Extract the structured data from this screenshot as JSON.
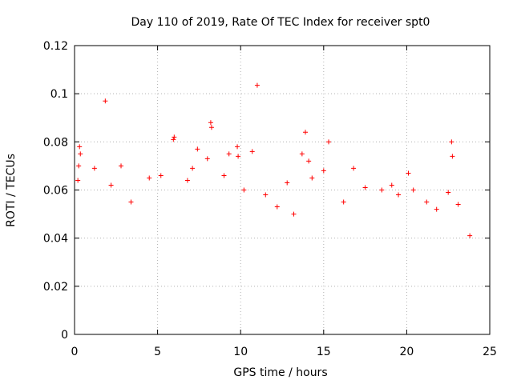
{
  "chart_data": {
    "type": "scatter",
    "title": "Day 110 of 2019, Rate Of TEC Index for receiver spt0",
    "xlabel": "GPS time / hours",
    "ylabel": "ROTI / TECUs",
    "xlim": [
      0,
      25
    ],
    "ylim": [
      0,
      0.12
    ],
    "xticks": [
      0,
      5,
      10,
      15,
      20,
      25
    ],
    "xtick_labels": [
      "0",
      "5",
      "10",
      "15",
      "20",
      "25"
    ],
    "yticks": [
      0,
      0.02,
      0.04,
      0.06,
      0.08,
      0.1,
      0.12
    ],
    "ytick_labels": [
      "0",
      "0.02",
      "0.04",
      "0.06",
      "0.08",
      "0.1",
      "0.12"
    ],
    "grid": true,
    "marker": "+",
    "marker_color": "#ff0000",
    "series": [
      {
        "name": "ROTI",
        "points": [
          [
            1.85,
            0.097
          ],
          [
            11.0,
            0.1035
          ],
          [
            8.2,
            0.088
          ],
          [
            8.25,
            0.086
          ],
          [
            6.0,
            0.082
          ],
          [
            5.95,
            0.081
          ],
          [
            13.9,
            0.084
          ],
          [
            15.3,
            0.08
          ],
          [
            22.7,
            0.08
          ],
          [
            22.75,
            0.074
          ],
          [
            0.3,
            0.078
          ],
          [
            0.35,
            0.075
          ],
          [
            0.25,
            0.07
          ],
          [
            7.4,
            0.077
          ],
          [
            9.8,
            0.078
          ],
          [
            9.85,
            0.074
          ],
          [
            9.3,
            0.075
          ],
          [
            10.7,
            0.076
          ],
          [
            13.7,
            0.075
          ],
          [
            14.1,
            0.072
          ],
          [
            16.8,
            0.069
          ],
          [
            1.2,
            0.069
          ],
          [
            2.8,
            0.07
          ],
          [
            20.1,
            0.067
          ],
          [
            7.1,
            0.069
          ],
          [
            8.0,
            0.073
          ],
          [
            6.8,
            0.064
          ],
          [
            5.2,
            0.066
          ],
          [
            4.5,
            0.065
          ],
          [
            0.2,
            0.064
          ],
          [
            12.8,
            0.063
          ],
          [
            14.3,
            0.065
          ],
          [
            15.0,
            0.068
          ],
          [
            17.5,
            0.061
          ],
          [
            18.5,
            0.06
          ],
          [
            19.5,
            0.058
          ],
          [
            21.2,
            0.055
          ],
          [
            22.5,
            0.059
          ],
          [
            23.8,
            0.041
          ],
          [
            2.2,
            0.062
          ],
          [
            3.4,
            0.055
          ],
          [
            9.0,
            0.066
          ],
          [
            10.2,
            0.06
          ],
          [
            11.5,
            0.058
          ],
          [
            12.2,
            0.053
          ],
          [
            13.2,
            0.05
          ],
          [
            16.2,
            0.055
          ],
          [
            19.1,
            0.062
          ],
          [
            20.4,
            0.06
          ],
          [
            21.8,
            0.052
          ],
          [
            23.1,
            0.054
          ]
        ]
      }
    ]
  }
}
